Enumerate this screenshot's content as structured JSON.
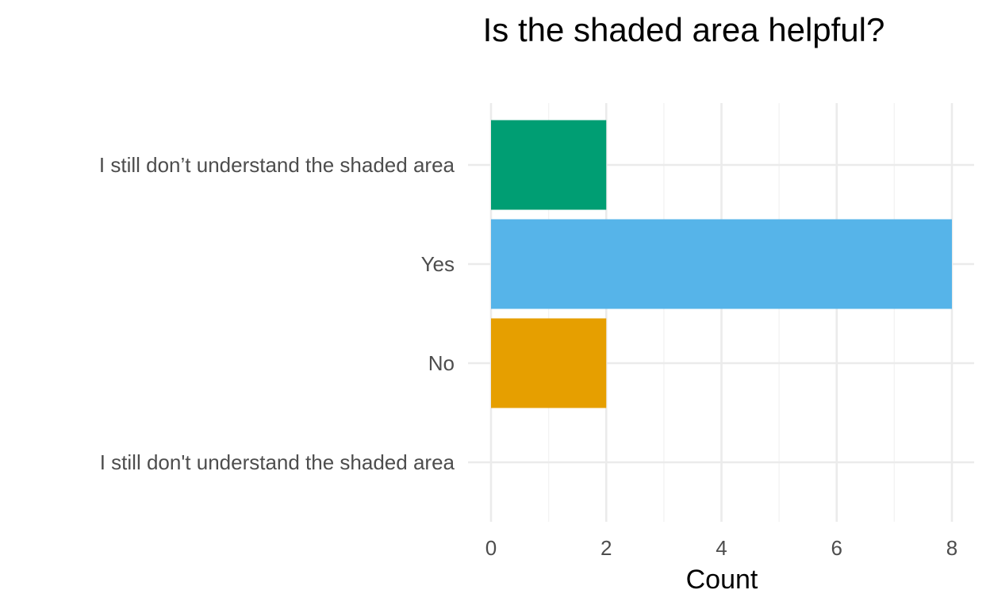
{
  "chart_data": {
    "type": "bar",
    "orientation": "horizontal",
    "title": "Is the shaded area helpful?",
    "xlabel": "Count",
    "ylabel": "",
    "categories": [
      "I still don’t understand the shaded area",
      "Yes",
      "No",
      "I still don't understand the shaded area"
    ],
    "values": [
      2,
      8,
      2,
      0
    ],
    "colors": [
      "#009E73",
      "#56B4E9",
      "#E69F00",
      "#999999"
    ],
    "xlim": [
      0,
      8.4
    ],
    "x_ticks": [
      0,
      2,
      4,
      6,
      8
    ],
    "grid": true,
    "legend": "none"
  }
}
